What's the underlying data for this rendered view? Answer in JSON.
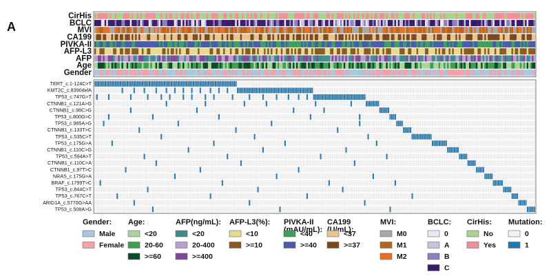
{
  "panel_label": "A",
  "chart_data": {
    "type": "heatmap",
    "title": "",
    "description_of_axes": "columns = patients (sorted by mutation); rows = clinical tracks and mutations",
    "clinical_tracks": [
      "CirHis",
      "BCLC",
      "MVI",
      "CA199",
      "PIVKA-II",
      "AFP-L3",
      "AFP",
      "Age",
      "Gender"
    ],
    "mutations": [
      {
        "label": "TERT_c.1-124C>T",
        "start": 0,
        "end": 0.323,
        "extra": []
      },
      {
        "label": "KMT2C_c.8390delA",
        "start": 0.323,
        "end": 0.495,
        "extra": [
          0.06,
          0.09,
          0.11,
          0.14,
          0.16,
          0.18,
          0.2,
          0.22,
          0.24,
          0.26,
          0.28,
          0.3
        ]
      },
      {
        "label": "TP53_c.747G>T",
        "start": 0.495,
        "end": 0.617,
        "extra": [
          0.005,
          0.03,
          0.08,
          0.12,
          0.15,
          0.17,
          0.2,
          0.22,
          0.25,
          0.27,
          0.31,
          0.35,
          0.38,
          0.41,
          0.44,
          0.46,
          0.48
        ]
      },
      {
        "label": "CTNNB1_c.121A>G",
        "start": 0.617,
        "end": 0.648,
        "extra": [
          0.16,
          0.25,
          0.34,
          0.39,
          0.5,
          0.58
        ]
      },
      {
        "label": "CTNNB1_c.98C>G",
        "start": 0.648,
        "end": 0.668,
        "extra": [
          0.08,
          0.23,
          0.45,
          0.52
        ]
      },
      {
        "label": "TP53_c.800G>C",
        "start": 0.668,
        "end": 0.685,
        "extra": [
          0.03,
          0.13,
          0.28,
          0.49,
          0.6
        ]
      },
      {
        "label": "TP53_c.985A>G",
        "start": 0.685,
        "end": 0.7,
        "extra": [
          0.02,
          0.19,
          0.4,
          0.6
        ]
      },
      {
        "label": "CTNNB1_c.133T>C",
        "start": 0.7,
        "end": 0.72,
        "extra": [
          0.1,
          0.32,
          0.55
        ]
      },
      {
        "label": "TP53_c.535C>T",
        "start": 0.72,
        "end": 0.765,
        "extra": [
          0.15,
          0.36,
          0.62
        ]
      },
      {
        "label": "TP53_c.175G>A",
        "start": 0.765,
        "end": 0.8,
        "extra": [
          0.04,
          0.27,
          0.43,
          0.64
        ]
      },
      {
        "label": "CTNNB1_c.110C>G",
        "start": 0.8,
        "end": 0.825,
        "extra": [
          0.21,
          0.38,
          0.57
        ]
      },
      {
        "label": "TP53_c.594A>T",
        "start": 0.825,
        "end": 0.848,
        "extra": [
          0.11,
          0.3,
          0.51,
          0.66
        ]
      },
      {
        "label": "CTNNB1_c.110C>A",
        "start": 0.848,
        "end": 0.865,
        "extra": [
          0.14,
          0.33,
          0.59
        ]
      },
      {
        "label": "CTNNB1_c.97T>C",
        "start": 0.865,
        "end": 0.885,
        "extra": [
          0.07,
          0.24,
          0.46
        ]
      },
      {
        "label": "NRAS_c.175G>A",
        "start": 0.885,
        "end": 0.905,
        "extra": [
          0.18,
          0.41,
          0.63
        ]
      },
      {
        "label": "BRAF_c.1799T>C",
        "start": 0.905,
        "end": 0.925,
        "extra": [
          0.01,
          0.29,
          0.53,
          0.68
        ]
      },
      {
        "label": "TP53_c.844C>T",
        "start": 0.925,
        "end": 0.945,
        "extra": [
          0.12,
          0.37,
          0.56
        ]
      },
      {
        "label": "TP53_c.767C>T",
        "start": 0.945,
        "end": 0.962,
        "extra": [
          0.05,
          0.26,
          0.48,
          0.72
        ]
      },
      {
        "label": "ARID1A_c.5770G>AA",
        "start": 0.962,
        "end": 0.98,
        "extra": [
          0.09,
          0.35,
          0.61
        ]
      },
      {
        "label": "TP53_c.508A>G",
        "start": 0.98,
        "end": 1.0,
        "extra": [
          0.13,
          0.42,
          0.67
        ]
      }
    ],
    "legend": [
      {
        "title": "Gender:",
        "items": [
          {
            "label": "Male",
            "color": "#a7c8e0"
          },
          {
            "label": "Female",
            "color": "#f3a3a8"
          }
        ]
      },
      {
        "title": "Age:",
        "items": [
          {
            "label": "<20",
            "color": "#a9d69a"
          },
          {
            "label": "20-60",
            "color": "#3f9e52"
          },
          {
            "label": ">=60",
            "color": "#0b4a2a"
          }
        ]
      },
      {
        "title": "AFP(ng/mL):",
        "items": [
          {
            "label": "<20",
            "color": "#3f8c8a"
          },
          {
            "label": "20-400",
            "color": "#b9a0cf"
          },
          {
            "label": ">=400",
            "color": "#7d4a9a"
          }
        ]
      },
      {
        "title": "AFP-L3(%):",
        "items": [
          {
            "label": "<10",
            "color": "#e9d890"
          },
          {
            "label": ">=10",
            "color": "#8a5a22"
          }
        ]
      },
      {
        "title": "PIVKA-II",
        "subtitle": "(mAU/mL):",
        "items": [
          {
            "label": "<40",
            "color": "#3aa05a"
          },
          {
            "label": ">=40",
            "color": "#4a5aa8"
          }
        ]
      },
      {
        "title": "CA199",
        "subtitle": "(U/mL):",
        "items": [
          {
            "label": "<37",
            "color": "#e8c58a"
          },
          {
            "label": ">=37",
            "color": "#7a4a1e"
          }
        ]
      },
      {
        "title": "MVI:",
        "items": [
          {
            "label": "M0",
            "color": "#a8a8a8"
          },
          {
            "label": "M1",
            "color": "#b5651d"
          },
          {
            "label": "M2",
            "color": "#e5702a"
          }
        ]
      },
      {
        "title": "BCLC:",
        "items": [
          {
            "label": "0",
            "color": "#ebe7f3"
          },
          {
            "label": "A",
            "color": "#c9c0e0"
          },
          {
            "label": "B",
            "color": "#8c7fc0"
          },
          {
            "label": "C",
            "color": "#3b1a6e"
          }
        ]
      },
      {
        "title": "CirHis:",
        "items": [
          {
            "label": "No",
            "color": "#a8d48e"
          },
          {
            "label": "Yes",
            "color": "#f0909a"
          }
        ]
      },
      {
        "title": "Mutation:",
        "items": [
          {
            "label": "0",
            "color": "#f2f2f2"
          },
          {
            "label": "1",
            "color": "#1f78b4"
          }
        ]
      }
    ],
    "colors": {
      "mutation_present": "#2b77a8",
      "mutation_absent": "#ececec",
      "track_colors": {
        "CirHis": [
          "#a8d48e",
          "#f0909a"
        ],
        "BCLC": [
          "#ebe7f3",
          "#c9c0e0",
          "#8c7fc0",
          "#3b1a6e"
        ],
        "MVI": [
          "#a8a8a8",
          "#b5651d",
          "#e5702a"
        ],
        "CA199": [
          "#e8c58a",
          "#7a4a1e"
        ],
        "PIVKA-II": [
          "#3aa05a",
          "#4a5aa8"
        ],
        "AFP-L3": [
          "#e9d890",
          "#8a5a22"
        ],
        "AFP": [
          "#3f8c8a",
          "#b9a0cf",
          "#7d4a9a"
        ],
        "Age": [
          "#a9d69a",
          "#3f9e52",
          "#0b4a2a"
        ],
        "Gender": [
          "#a7c8e0",
          "#f3a3a8"
        ]
      }
    }
  }
}
